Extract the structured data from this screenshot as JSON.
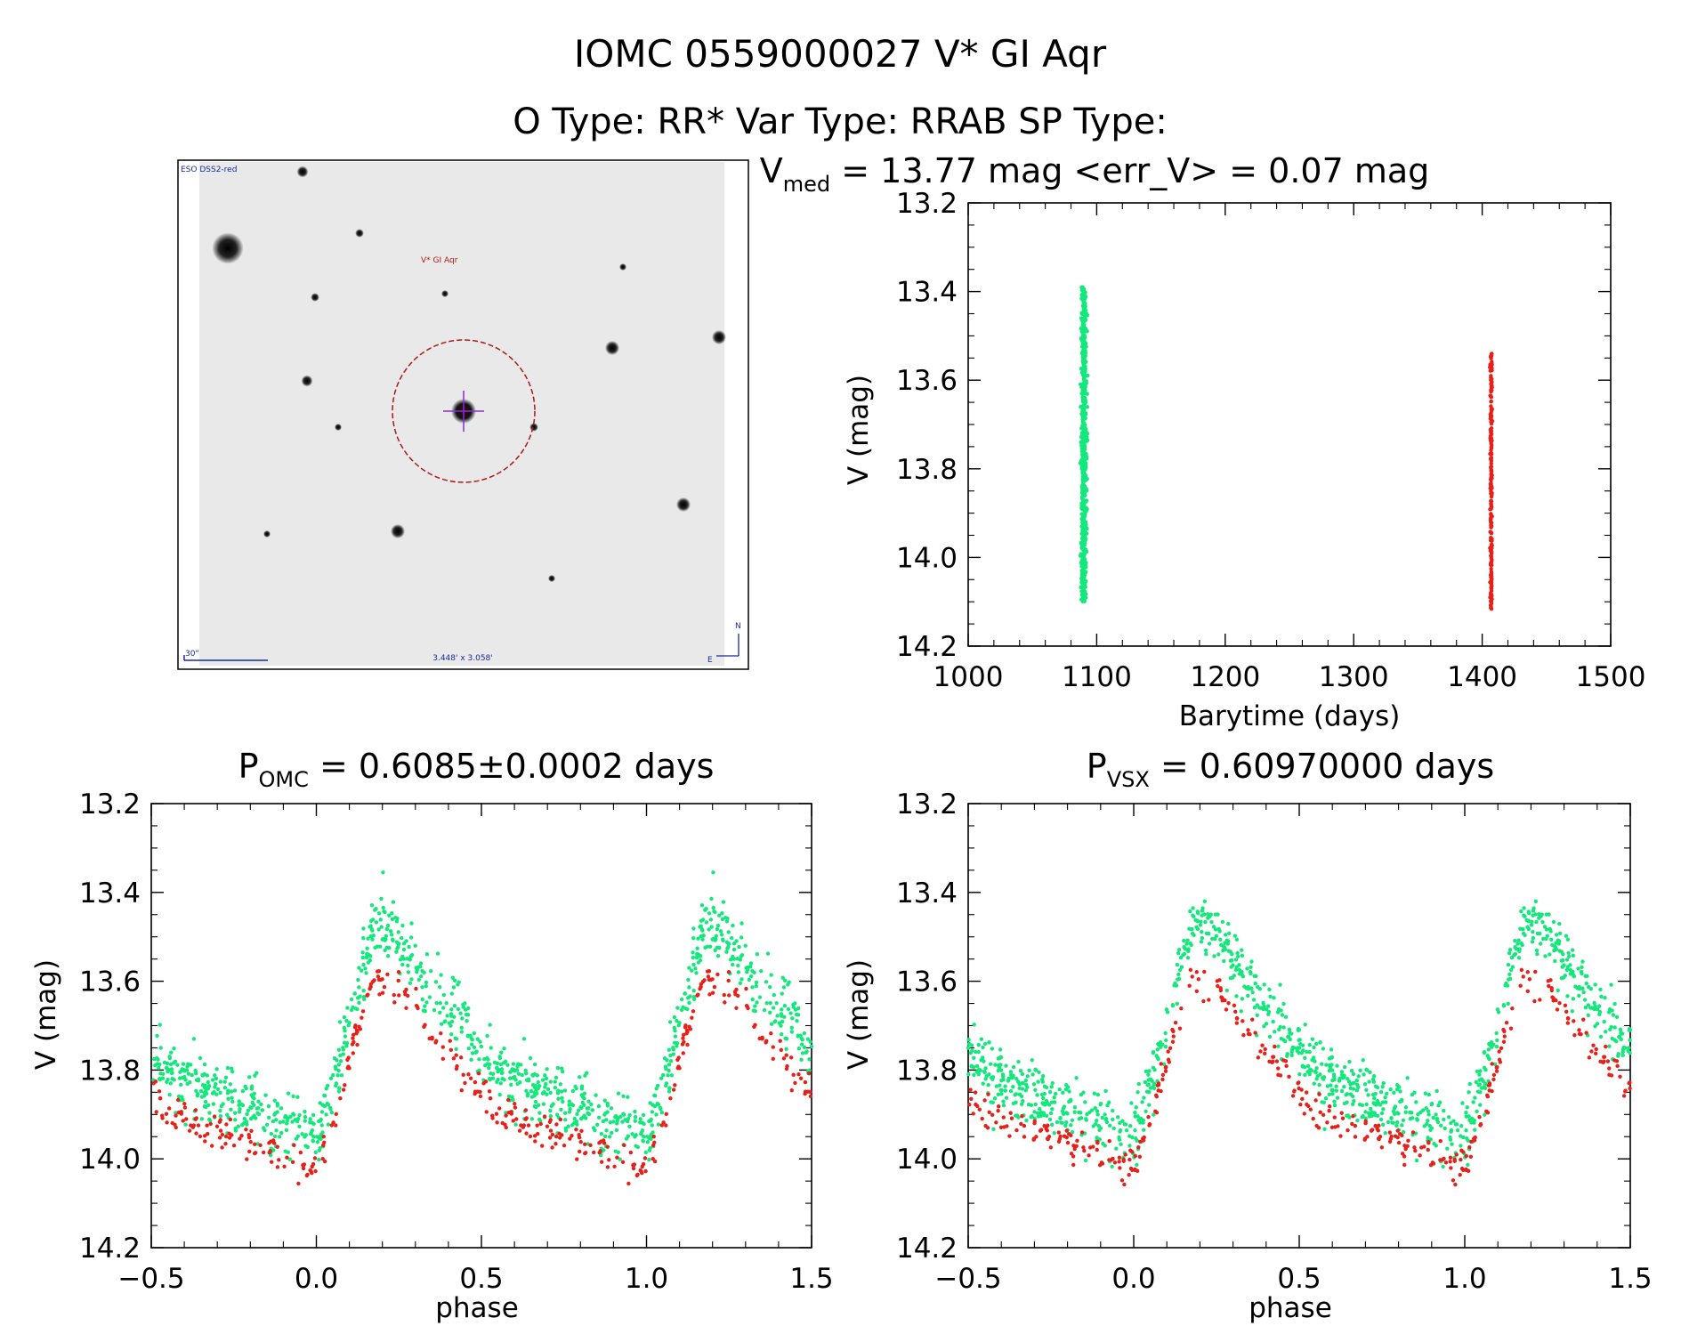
{
  "header": {
    "title_line1": "IOMC 0559000027   V* GI Aqr",
    "title_line2": "O Type: RR*  Var Type: RRAB  SP Type:"
  },
  "finder_image": {
    "survey_label": "ESO DSS2-red",
    "target_label": "V* GI Aqr",
    "scale_label": "30\"",
    "fov_label": "3.448' x 3.058'",
    "north_label": "N",
    "east_label": "E"
  },
  "colors": {
    "green": "#14e87c",
    "red": "#e8201a",
    "axis": "#000000",
    "target_marker": "#b01818",
    "crosshair": "#8a2be2"
  },
  "chart_data": [
    {
      "id": "lightcurve",
      "type": "scatter",
      "title_main": "V",
      "title_sub": "med",
      "title_rest": " = 13.77 mag <err_V> = 0.07 mag",
      "xlabel": "Barytime (days)",
      "ylabel": "V (mag)",
      "xlim": [
        1000,
        1500
      ],
      "ylim": [
        14.2,
        13.2
      ],
      "xticks": [
        "1000",
        "1100",
        "1200",
        "1300",
        "1400",
        "1500"
      ],
      "yticks": [
        "13.2",
        "13.4",
        "13.6",
        "13.8",
        "14.0",
        "14.2"
      ],
      "series": [
        {
          "color": "green",
          "x_center": 1090,
          "x_spread": 3,
          "y_min": 13.39,
          "y_max": 14.1,
          "n": 700
        },
        {
          "color": "red",
          "x_center": 1407,
          "x_spread": 1,
          "y_min": 13.54,
          "y_max": 14.12,
          "n": 240
        }
      ]
    },
    {
      "id": "phase_omc",
      "type": "scatter",
      "title_main": "P",
      "title_sub": "OMC",
      "title_rest": " = 0.6085±0.0002 days",
      "xlabel": "phase",
      "ylabel": "V (mag)",
      "xlim": [
        -0.5,
        1.5
      ],
      "ylim": [
        14.2,
        13.2
      ],
      "xticks": [
        "−0.5",
        "0.0",
        "0.5",
        "1.0",
        "1.5"
      ],
      "yticks": [
        "13.2",
        "13.4",
        "13.6",
        "13.8",
        "14.0",
        "14.2"
      ],
      "series": [
        {
          "color": "green",
          "mag_max": 13.48,
          "mag_min": 13.95,
          "scatter": 0.09,
          "n": 520
        },
        {
          "color": "red",
          "mag_max": 13.6,
          "mag_min": 14.02,
          "scatter": 0.05,
          "n": 190
        }
      ]
    },
    {
      "id": "phase_vsx",
      "type": "scatter",
      "title_main": "P",
      "title_sub": "VSX",
      "title_rest": " = 0.60970000 days",
      "xlabel": "phase",
      "ylabel": "V (mag)",
      "xlim": [
        -0.5,
        1.5
      ],
      "ylim": [
        14.2,
        13.2
      ],
      "xticks": [
        "−0.5",
        "0.0",
        "0.5",
        "1.0",
        "1.5"
      ],
      "yticks": [
        "13.2",
        "13.4",
        "13.6",
        "13.8",
        "14.0",
        "14.2"
      ],
      "series": [
        {
          "color": "green",
          "mag_max": 13.48,
          "mag_min": 13.95,
          "scatter": 0.09,
          "n": 520
        },
        {
          "color": "red",
          "mag_max": 13.6,
          "mag_min": 14.02,
          "scatter": 0.05,
          "n": 190
        }
      ]
    }
  ]
}
